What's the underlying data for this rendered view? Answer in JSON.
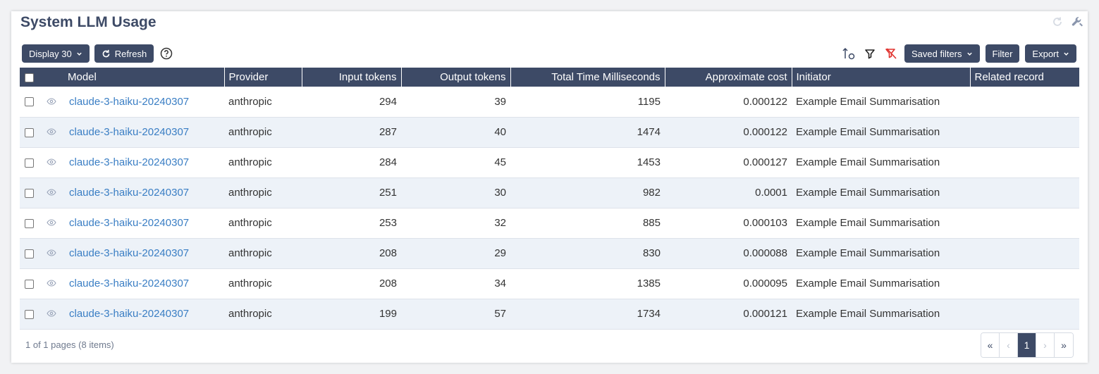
{
  "page": {
    "title": "System LLM Usage"
  },
  "toolbar": {
    "display_label": "Display 30",
    "refresh_label": "Refresh",
    "saved_filters_label": "Saved filters",
    "filter_label": "Filter",
    "export_label": "Export"
  },
  "table": {
    "headers": {
      "model": "Model",
      "provider": "Provider",
      "input_tokens": "Input tokens",
      "output_tokens": "Output tokens",
      "total_time": "Total Time Milliseconds",
      "cost": "Approximate cost",
      "initiator": "Initiator",
      "related": "Related record"
    },
    "rows": [
      {
        "model": "claude-3-haiku-20240307",
        "provider": "anthropic",
        "input_tokens": "294",
        "output_tokens": "39",
        "total_time": "1195",
        "cost": "0.000122",
        "initiator": "Example Email Summarisation",
        "related": ""
      },
      {
        "model": "claude-3-haiku-20240307",
        "provider": "anthropic",
        "input_tokens": "287",
        "output_tokens": "40",
        "total_time": "1474",
        "cost": "0.000122",
        "initiator": "Example Email Summarisation",
        "related": ""
      },
      {
        "model": "claude-3-haiku-20240307",
        "provider": "anthropic",
        "input_tokens": "284",
        "output_tokens": "45",
        "total_time": "1453",
        "cost": "0.000127",
        "initiator": "Example Email Summarisation",
        "related": ""
      },
      {
        "model": "claude-3-haiku-20240307",
        "provider": "anthropic",
        "input_tokens": "251",
        "output_tokens": "30",
        "total_time": "982",
        "cost": "0.0001",
        "initiator": "Example Email Summarisation",
        "related": ""
      },
      {
        "model": "claude-3-haiku-20240307",
        "provider": "anthropic",
        "input_tokens": "253",
        "output_tokens": "32",
        "total_time": "885",
        "cost": "0.000103",
        "initiator": "Example Email Summarisation",
        "related": ""
      },
      {
        "model": "claude-3-haiku-20240307",
        "provider": "anthropic",
        "input_tokens": "208",
        "output_tokens": "29",
        "total_time": "830",
        "cost": "0.000088",
        "initiator": "Example Email Summarisation",
        "related": ""
      },
      {
        "model": "claude-3-haiku-20240307",
        "provider": "anthropic",
        "input_tokens": "208",
        "output_tokens": "34",
        "total_time": "1385",
        "cost": "0.000095",
        "initiator": "Example Email Summarisation",
        "related": ""
      },
      {
        "model": "claude-3-haiku-20240307",
        "provider": "anthropic",
        "input_tokens": "199",
        "output_tokens": "57",
        "total_time": "1734",
        "cost": "0.000121",
        "initiator": "Example Email Summarisation",
        "related": ""
      }
    ]
  },
  "footer": {
    "summary": "1 of 1 pages (8 items)",
    "pager": {
      "first": "«",
      "prev": "‹",
      "current": "1",
      "next": "›",
      "last": "»"
    }
  },
  "icons": {
    "refresh": "refresh-icon",
    "help": "help-circle-icon",
    "sort": "sort-order-icon",
    "filter": "filter-icon",
    "clear_filter": "clear-filter-icon",
    "wrench": "wrench-icon",
    "view": "eye-icon",
    "chevron": "chevron-down-icon"
  },
  "colors": {
    "header_bg": "#3d4a66",
    "link": "#3a7ec4",
    "clear_filter": "#e0322e",
    "row_alt": "#edf2f8"
  }
}
